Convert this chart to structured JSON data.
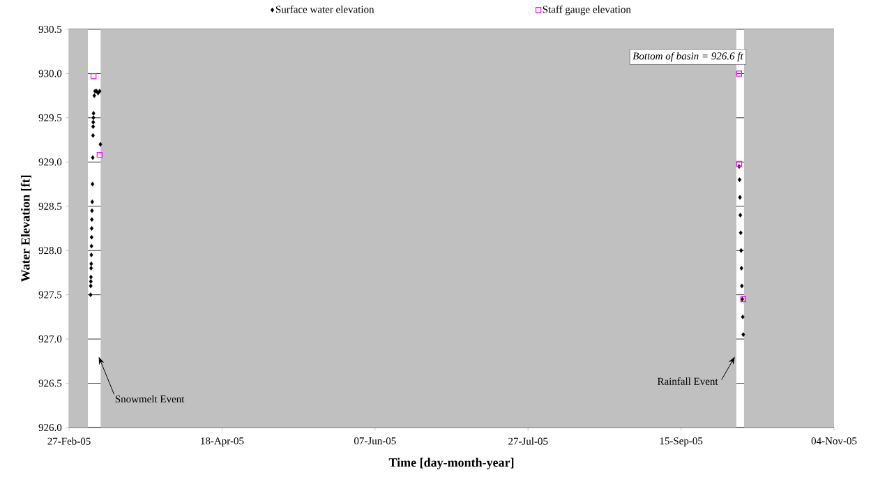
{
  "chart_data": {
    "type": "scatter",
    "xlabel": "Time [day-month-year]",
    "ylabel": "Water Elevation [ft]",
    "xlim": [
      "2005-02-27",
      "2005-11-04"
    ],
    "xticks": [
      {
        "value": "2005-02-27",
        "label": "27-Feb-05"
      },
      {
        "value": "2005-04-18",
        "label": "18-Apr-05"
      },
      {
        "value": "2005-06-07",
        "label": "07-Jun-05"
      },
      {
        "value": "2005-07-27",
        "label": "27-Jul-05"
      },
      {
        "value": "2005-09-15",
        "label": "15-Sep-05"
      },
      {
        "value": "2005-11-04",
        "label": "04-Nov-05"
      }
    ],
    "ylim": [
      926,
      930.5
    ],
    "yticks": [
      {
        "value": 926,
        "label": "926.0"
      },
      {
        "value": 926.5,
        "label": "926.5"
      },
      {
        "value": 927,
        "label": "927.0"
      },
      {
        "value": 927.5,
        "label": "927.5"
      },
      {
        "value": 928,
        "label": "928.0"
      },
      {
        "value": 928.5,
        "label": "928.5"
      },
      {
        "value": 929,
        "label": "929.0"
      },
      {
        "value": 929.5,
        "label": "929.5"
      },
      {
        "value": 930,
        "label": "930.0"
      },
      {
        "value": 930.5,
        "label": "930.5"
      }
    ],
    "grid": "y",
    "legend": "top",
    "series": [
      {
        "name": "Surface water elevation",
        "color": "#000000",
        "marker": "diamond",
        "x": [
          "2005-03-06T01:00",
          "2005-03-06T02:00",
          "2005-03-06T03:00",
          "2005-03-06T04:00",
          "2005-03-06T05:00",
          "2005-03-06T06:00",
          "2005-03-06T07:00",
          "2005-03-06T08:00",
          "2005-03-06T09:00",
          "2005-03-06T10:00",
          "2005-03-06T11:00",
          "2005-03-06T12:00",
          "2005-03-06T14:00",
          "2005-03-06T16:00",
          "2005-03-06T18:00",
          "2005-03-06T20:00",
          "2005-03-06T21:00",
          "2005-03-06T22:00",
          "2005-03-06T23:00",
          "2005-03-07T00:00",
          "2005-03-07T06:00",
          "2005-03-07T12:00",
          "2005-03-08T00:00",
          "2005-03-08T12:00",
          "2005-03-09T00:00",
          "2005-03-09T06:00",
          "2005-10-04T00:00",
          "2005-10-04T03:00",
          "2005-10-04T06:00",
          "2005-10-04T09:00",
          "2005-10-04T12:00",
          "2005-10-04T15:00",
          "2005-10-04T18:00",
          "2005-10-04T21:00",
          "2005-10-05T00:00",
          "2005-10-05T04:00",
          "2005-10-05T08:00"
        ],
        "values": [
          927.5,
          927.6,
          927.65,
          927.7,
          927.8,
          927.85,
          927.95,
          928.05,
          928.15,
          928.25,
          928.35,
          928.45,
          928.55,
          928.75,
          929.05,
          929.3,
          929.4,
          929.45,
          929.5,
          929.55,
          929.75,
          929.8,
          929.8,
          929.78,
          929.8,
          929.2,
          928.95,
          928.8,
          928.6,
          928.4,
          928.2,
          928.0,
          927.8,
          927.6,
          927.45,
          927.25,
          927.05
        ]
      },
      {
        "name": "Staff gauge elevation",
        "color": "#ff00ff",
        "marker": "square",
        "x": [
          "2005-03-07T00:00",
          "2005-03-09T00:00",
          "2005-10-03T23:00",
          "2005-10-04T00:00",
          "2005-10-05T08:00"
        ],
        "values": [
          929.97,
          929.08,
          930.0,
          928.98,
          927.45
        ]
      }
    ],
    "bands": [
      {
        "axis": "x",
        "from": "2005-02-27",
        "to": "2005-03-05T04:00",
        "color": "#c0c0c0"
      },
      {
        "axis": "x",
        "from": "2005-03-09T08:00",
        "to": "2005-10-03T02:00",
        "color": "#c0c0c0"
      },
      {
        "axis": "x",
        "from": "2005-10-05T14:00",
        "to": "2005-11-04",
        "color": "#c0c0c0"
      }
    ],
    "annotations": [
      "Bottom of basin = 926.6 ft",
      {
        "text": "Snowmelt Event",
        "x": "2005-03-08T17:00",
        "y": 926.8
      },
      {
        "text": "Rainfall Event",
        "x": "2005-10-02T14:00",
        "y": 926.8
      }
    ]
  }
}
